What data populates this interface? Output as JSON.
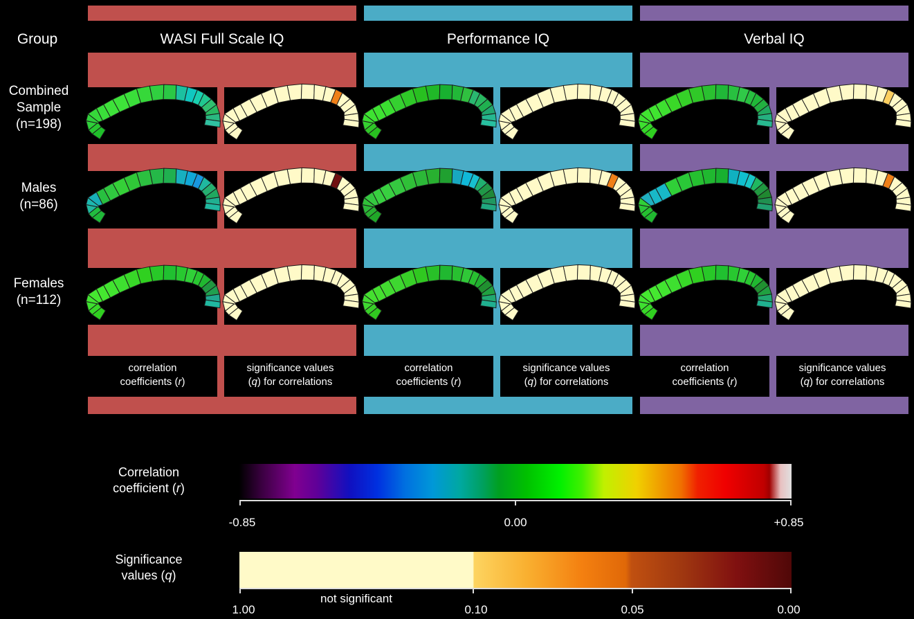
{
  "header": {
    "group_label": "Group",
    "columns": [
      "WASI Full Scale IQ",
      "Performance IQ",
      "Verbal IQ"
    ]
  },
  "colors": {
    "fsiq": "#c0504d",
    "piq": "#4bacc6",
    "viq": "#8064a2",
    "seg_outline": "#1a1a1a"
  },
  "groups": [
    {
      "line1": "Combined",
      "line2": "Sample",
      "line3": "(n=198)"
    },
    {
      "line1": "Males",
      "line2": "(n=86)",
      "line3": ""
    },
    {
      "line1": "Females",
      "line2": "(n=112)",
      "line3": ""
    }
  ],
  "panel_captions": {
    "r_line1": "correlation",
    "r_line2_pre": "coefficients (",
    "r_sym": "r",
    "r_line2_post": ")",
    "q_line1": "significance values",
    "q_line2_pre": "(",
    "q_sym": "q",
    "q_line2_post": ") for correlations"
  },
  "legend": {
    "r_title1": "Correlation",
    "r_title2_pre": "coefficient (",
    "r_sym": "r",
    "r_title2_post": ")",
    "r_ticks": [
      "-0.85",
      "0.00",
      "+0.85"
    ],
    "q_title1": "Significance",
    "q_title2_pre": "values (",
    "q_sym": "q",
    "q_title2_post": ")",
    "q_ticks": [
      "1.00",
      "0.10",
      "0.05",
      "0.00"
    ],
    "q_note": "not significant"
  },
  "maps": {
    "r": [
      [
        [
          "#1fbf2a",
          "#28c830",
          "#2fd03a",
          "#2fd03a",
          "#36d83a",
          "#3ade3a",
          "#3ee23a",
          "#3ee23a",
          "#3ade3a",
          "#36d83a",
          "#30d040",
          "#2bc845",
          "#1cc0a0",
          "#10c8c0",
          "#18d0b0",
          "#20c890",
          "#30c070",
          "#28b860",
          "#2ab880",
          "#30c0a0"
        ],
        [
          "#28c020",
          "#2fc828",
          "#35d030",
          "#3ade30",
          "#3ee232",
          "#3ee232",
          "#3ade30",
          "#35d030",
          "#2fc828",
          "#28c020",
          "#20b828",
          "#18b030",
          "#22b838",
          "#30c040",
          "#2ab870",
          "#28b860",
          "#20b050",
          "#20a870",
          "#25b890",
          "#28c0a0"
        ],
        [
          "#2fd020",
          "#35d828",
          "#3ee030",
          "#3ee230",
          "#40e430",
          "#40e430",
          "#3ee030",
          "#3ad828",
          "#35d028",
          "#30c828",
          "#2ac030",
          "#20b838",
          "#28c040",
          "#30c848",
          "#28c040",
          "#20b838",
          "#22b040",
          "#20a860",
          "#25b080",
          "#28b890"
        ]
      ],
      [
        [
          "#20b838",
          "#22bc40",
          "#20b8a0",
          "#1cb8b0",
          "#18b0b8",
          "#28c040",
          "#30c840",
          "#35d038",
          "#30c838",
          "#2cc040",
          "#25b848",
          "#20b050",
          "#18b0c0",
          "#10a8d8",
          "#1898e0",
          "#20b8a0",
          "#25b070",
          "#20a860",
          "#20b090",
          "#20b8a0"
        ],
        [
          "#20a828",
          "#28b030",
          "#2cb838",
          "#30c038",
          "#35c840",
          "#38d040",
          "#38d040",
          "#35c840",
          "#30c038",
          "#2cb838",
          "#28b030",
          "#20a030",
          "#18a8c0",
          "#10b8d8",
          "#18c0d0",
          "#20b070",
          "#209848",
          "#208838",
          "#209860",
          "#20a880"
        ],
        [
          "#20b830",
          "#25c030",
          "#2ac838",
          "#30d038",
          "#20b0c0",
          "#18b8c8",
          "#18b8c8",
          "#30d038",
          "#2ac838",
          "#25c030",
          "#20b830",
          "#18b030",
          "#10b0c0",
          "#10c0d0",
          "#18c8c8",
          "#20b860",
          "#209840",
          "#208830",
          "#209050",
          "#20a070"
        ]
      ],
      [
        [
          "#30d020",
          "#38d828",
          "#3ee030",
          "#42e430",
          "#45e830",
          "#45e830",
          "#42e430",
          "#3ee030",
          "#38d828",
          "#30d020",
          "#28c828",
          "#20c030",
          "#28c830",
          "#30d038",
          "#28c830",
          "#20b830",
          "#209840",
          "#20a050",
          "#20a890",
          "#20b8a0"
        ],
        [
          "#30c820",
          "#38d028",
          "#3ed830",
          "#42dc30",
          "#45e030",
          "#45e030",
          "#42dc30",
          "#3ed830",
          "#38d028",
          "#30c820",
          "#28c028",
          "#20b830",
          "#28c030",
          "#30c838",
          "#28c030",
          "#20b030",
          "#209030",
          "#20a040",
          "#20a870",
          "#20b090"
        ],
        [
          "#30d020",
          "#38d828",
          "#3ee030",
          "#42e430",
          "#45e830",
          "#45e830",
          "#42e430",
          "#3ee030",
          "#38d828",
          "#30d020",
          "#28c828",
          "#20c030",
          "#28c830",
          "#30d038",
          "#28c830",
          "#20b830",
          "#209030",
          "#20a040",
          "#20a870",
          "#20b090"
        ]
      ]
    ],
    "q": [
      [
        [
          "#fffac8",
          "#fffac8",
          "#fffac8",
          "#fffac8",
          "#fffac8",
          "#fffac8",
          "#fffac8",
          "#fffac8",
          "#fffac8",
          "#fffac8",
          "#fffac8",
          "#fffac8",
          "#fffac8",
          "#fffac8",
          "#f08018",
          "#fffac8",
          "#fffac8",
          "#fffac8",
          "#fffac8",
          "#fffac8"
        ],
        [
          "#fffac8",
          "#fffac8",
          "#fffac8",
          "#fffac8",
          "#fffac8",
          "#fffac8",
          "#fffac8",
          "#fffac8",
          "#fffac8",
          "#fffac8",
          "#fffac8",
          "#fffac8",
          "#fffac8",
          "#fffac8",
          "#fffac8",
          "#fffac8",
          "#fffac8",
          "#fffac8",
          "#fffac8",
          "#fffac8"
        ],
        [
          "#fffac8",
          "#fffac8",
          "#fffac8",
          "#fffac8",
          "#fffac8",
          "#fffac8",
          "#fffac8",
          "#fffac8",
          "#fffac8",
          "#fffac8",
          "#fffac8",
          "#fffac8",
          "#fffac8",
          "#fffac8",
          "#fdd060",
          "#fffac8",
          "#fffac8",
          "#fffac8",
          "#fffac8",
          "#fffac8"
        ]
      ],
      [
        [
          "#fffac8",
          "#fffac8",
          "#fffac8",
          "#fffac8",
          "#fffac8",
          "#fffac8",
          "#fffac8",
          "#fffac8",
          "#fffac8",
          "#fffac8",
          "#fffac8",
          "#fffac8",
          "#fffac8",
          "#fffac8",
          "#701010",
          "#fffac8",
          "#fffac8",
          "#fffac8",
          "#fffac8",
          "#fffac8"
        ],
        [
          "#fffac8",
          "#fffac8",
          "#fffac8",
          "#fffac8",
          "#fffac8",
          "#fffac8",
          "#fffac8",
          "#fffac8",
          "#fffac8",
          "#fffac8",
          "#fffac8",
          "#fffac8",
          "#fffac8",
          "#fffac8",
          "#f08018",
          "#fffac8",
          "#fffac8",
          "#fffac8",
          "#fffac8",
          "#fffac8"
        ],
        [
          "#fffac8",
          "#fffac8",
          "#fffac8",
          "#fffac8",
          "#fffac8",
          "#fffac8",
          "#fffac8",
          "#fffac8",
          "#fffac8",
          "#fffac8",
          "#fffac8",
          "#fffac8",
          "#fffac8",
          "#fffac8",
          "#f08018",
          "#fffac8",
          "#fffac8",
          "#fffac8",
          "#fffac8",
          "#fffac8"
        ]
      ],
      [
        [
          "#fffac8",
          "#fffac8",
          "#fffac8",
          "#fffac8",
          "#fffac8",
          "#fffac8",
          "#fffac8",
          "#fffac8",
          "#fffac8",
          "#fffac8",
          "#fffac8",
          "#fffac8",
          "#fffac8",
          "#fffac8",
          "#fffac8",
          "#fffac8",
          "#fffac8",
          "#fffac8",
          "#fffac8",
          "#fffac8"
        ],
        [
          "#fffac8",
          "#fffac8",
          "#fffac8",
          "#fffac8",
          "#fffac8",
          "#fffac8",
          "#fffac8",
          "#fffac8",
          "#fffac8",
          "#fffac8",
          "#fffac8",
          "#fffac8",
          "#fffac8",
          "#fffac8",
          "#fffac8",
          "#fffac8",
          "#fffac8",
          "#fffac8",
          "#fffac8",
          "#fffac8"
        ],
        [
          "#fffac8",
          "#fffac8",
          "#fffac8",
          "#fffac8",
          "#fffac8",
          "#fffac8",
          "#fffac8",
          "#fffac8",
          "#fffac8",
          "#fffac8",
          "#fffac8",
          "#fffac8",
          "#fffac8",
          "#fffac8",
          "#fffac8",
          "#fffac8",
          "#fffac8",
          "#fffac8",
          "#fffac8",
          "#fffac8"
        ]
      ]
    ]
  }
}
